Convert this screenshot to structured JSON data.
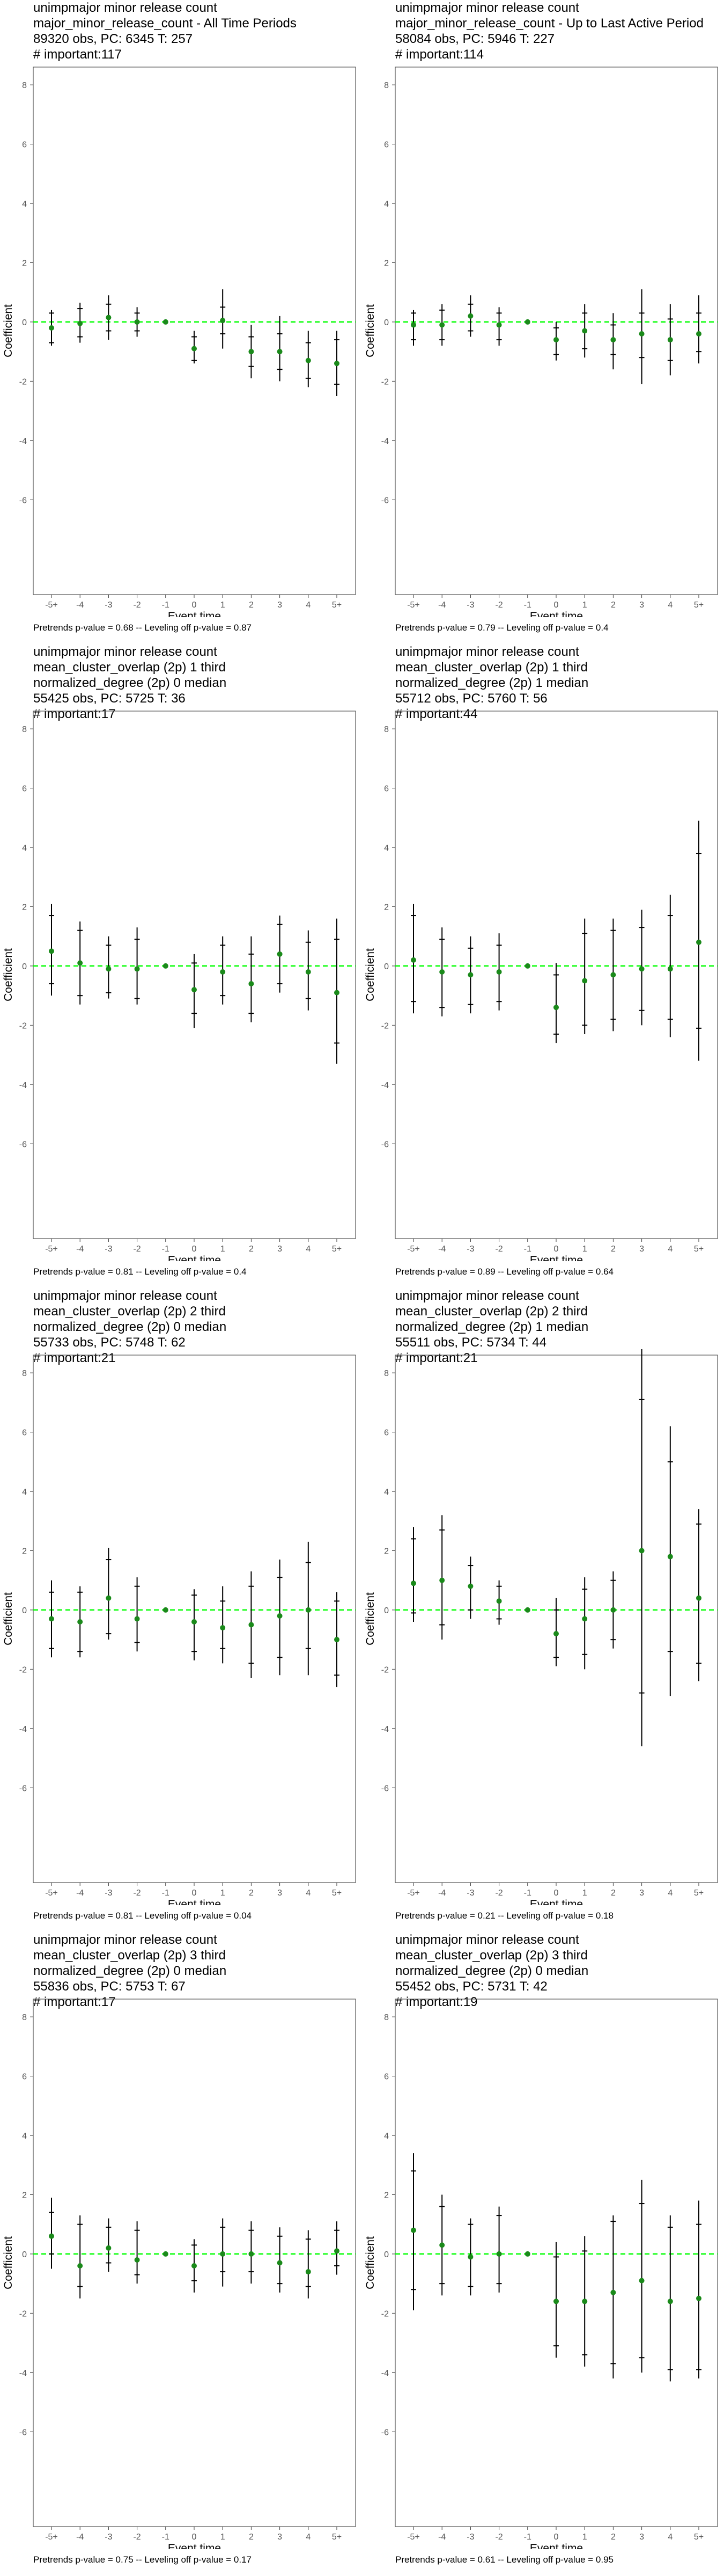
{
  "axis": {
    "xlabel": "Event time",
    "ylabel": "Coefficient",
    "x_ticks": [
      "-5+",
      "-4",
      "-3",
      "-2",
      "-1",
      "0",
      "1",
      "2",
      "3",
      "4",
      "5+"
    ],
    "y_ticks": [
      8,
      6,
      4,
      2,
      0,
      -2,
      -4,
      -6
    ],
    "ylim": [
      -9.2,
      8.6
    ],
    "zero_line_color": "#00FF00",
    "point_color": "#1A8A1A",
    "whisker_color": "#000000"
  },
  "chart_data": [
    {
      "type": "scatter",
      "title": [
        "unimpmajor minor release count",
        "major_minor_release_count - All Time Periods",
        "89320 obs, PC: 6345 T: 257",
        "# important:117"
      ],
      "footer": "Pretrends p-value = 0.68 -- Leveling off p-value = 0.87",
      "x": [
        "-5+",
        "-4",
        "-3",
        "-2",
        "-1",
        "0",
        "1",
        "2",
        "3",
        "4",
        "5+"
      ],
      "estimate": [
        -0.2,
        -0.05,
        0.15,
        0.0,
        0.0,
        -0.9,
        0.05,
        -1.0,
        -1.0,
        -1.3,
        -1.4
      ],
      "inner": [
        [
          -0.7,
          0.3
        ],
        [
          -0.5,
          0.45
        ],
        [
          -0.3,
          0.6
        ],
        [
          -0.3,
          0.3
        ],
        [
          0,
          0
        ],
        [
          -1.3,
          -0.5
        ],
        [
          -0.4,
          0.5
        ],
        [
          -1.5,
          -0.5
        ],
        [
          -1.6,
          -0.4
        ],
        [
          -1.9,
          -0.7
        ],
        [
          -2.1,
          -0.6
        ]
      ],
      "outer": [
        [
          -0.8,
          0.4
        ],
        [
          -0.7,
          0.65
        ],
        [
          -0.6,
          0.9
        ],
        [
          -0.5,
          0.5
        ],
        [
          0,
          0
        ],
        [
          -1.4,
          -0.3
        ],
        [
          -0.9,
          1.1
        ],
        [
          -1.9,
          -0.1
        ],
        [
          -2.0,
          0.2
        ],
        [
          -2.2,
          -0.3
        ],
        [
          -2.5,
          -0.3
        ]
      ]
    },
    {
      "type": "scatter",
      "title": [
        "unimpmajor minor release count",
        "major_minor_release_count - Up to Last Active Period",
        "58084 obs, PC: 5946 T: 227",
        "# important:114"
      ],
      "footer": "Pretrends p-value = 0.79 -- Leveling off p-value = 0.4",
      "x": [
        "-5+",
        "-4",
        "-3",
        "-2",
        "-1",
        "0",
        "1",
        "2",
        "3",
        "4",
        "5+"
      ],
      "estimate": [
        -0.1,
        -0.1,
        0.2,
        -0.1,
        0.0,
        -0.6,
        -0.3,
        -0.6,
        -0.4,
        -0.6,
        -0.4
      ],
      "inner": [
        [
          -0.6,
          0.3
        ],
        [
          -0.6,
          0.4
        ],
        [
          -0.3,
          0.6
        ],
        [
          -0.6,
          0.3
        ],
        [
          0,
          0
        ],
        [
          -1.1,
          -0.2
        ],
        [
          -0.9,
          0.3
        ],
        [
          -1.1,
          -0.1
        ],
        [
          -1.2,
          0.3
        ],
        [
          -1.3,
          0.1
        ],
        [
          -1.0,
          0.3
        ]
      ],
      "outer": [
        [
          -0.8,
          0.4
        ],
        [
          -0.8,
          0.6
        ],
        [
          -0.5,
          0.9
        ],
        [
          -0.8,
          0.5
        ],
        [
          0,
          0
        ],
        [
          -1.3,
          0.0
        ],
        [
          -1.2,
          0.6
        ],
        [
          -1.6,
          0.3
        ],
        [
          -2.1,
          1.1
        ],
        [
          -1.8,
          0.6
        ],
        [
          -1.4,
          0.9
        ]
      ]
    },
    {
      "type": "scatter",
      "title": [
        "unimpmajor minor release count",
        "mean_cluster_overlap (2p) 1 third",
        "normalized_degree (2p) 0 median",
        "55425 obs, PC: 5725 T: 36",
        "# important:17"
      ],
      "footer": "Pretrends p-value = 0.81 -- Leveling off p-value = 0.4",
      "x": [
        "-5+",
        "-4",
        "-3",
        "-2",
        "-1",
        "0",
        "1",
        "2",
        "3",
        "4",
        "5+"
      ],
      "estimate": [
        0.5,
        0.1,
        -0.1,
        -0.1,
        0.0,
        -0.8,
        -0.2,
        -0.6,
        0.4,
        -0.2,
        -0.9
      ],
      "inner": [
        [
          -0.6,
          1.7
        ],
        [
          -1.0,
          1.2
        ],
        [
          -0.9,
          0.7
        ],
        [
          -1.1,
          0.9
        ],
        [
          0,
          0
        ],
        [
          -1.6,
          0.1
        ],
        [
          -1.0,
          0.7
        ],
        [
          -1.6,
          0.4
        ],
        [
          -0.6,
          1.4
        ],
        [
          -1.1,
          0.8
        ],
        [
          -2.6,
          0.9
        ]
      ],
      "outer": [
        [
          -1.0,
          2.1
        ],
        [
          -1.3,
          1.5
        ],
        [
          -1.1,
          1.0
        ],
        [
          -1.3,
          1.3
        ],
        [
          0,
          0
        ],
        [
          -2.1,
          0.4
        ],
        [
          -1.3,
          1.0
        ],
        [
          -1.9,
          1.0
        ],
        [
          -0.9,
          1.7
        ],
        [
          -1.5,
          1.2
        ],
        [
          -3.3,
          1.6
        ]
      ]
    },
    {
      "type": "scatter",
      "title": [
        "unimpmajor minor release count",
        "mean_cluster_overlap (2p) 1 third",
        "normalized_degree (2p) 1 median",
        "55712 obs, PC: 5760 T: 56",
        "# important:44"
      ],
      "footer": "Pretrends p-value = 0.89 -- Leveling off p-value = 0.64",
      "x": [
        "-5+",
        "-4",
        "-3",
        "-2",
        "-1",
        "0",
        "1",
        "2",
        "3",
        "4",
        "5+"
      ],
      "estimate": [
        0.2,
        -0.2,
        -0.3,
        -0.2,
        0.0,
        -1.4,
        -0.5,
        -0.3,
        -0.1,
        -0.1,
        0.8
      ],
      "inner": [
        [
          -1.2,
          1.7
        ],
        [
          -1.4,
          0.9
        ],
        [
          -1.3,
          0.6
        ],
        [
          -1.2,
          0.7
        ],
        [
          0,
          0
        ],
        [
          -2.3,
          -0.3
        ],
        [
          -2.0,
          1.1
        ],
        [
          -1.8,
          1.2
        ],
        [
          -1.5,
          1.3
        ],
        [
          -1.8,
          1.7
        ],
        [
          -2.1,
          3.8
        ]
      ],
      "outer": [
        [
          -1.6,
          2.1
        ],
        [
          -1.7,
          1.3
        ],
        [
          -1.6,
          1.0
        ],
        [
          -1.5,
          1.1
        ],
        [
          0,
          0
        ],
        [
          -2.6,
          0.1
        ],
        [
          -2.3,
          1.6
        ],
        [
          -2.2,
          1.6
        ],
        [
          -2.0,
          1.9
        ],
        [
          -2.4,
          2.4
        ],
        [
          -3.2,
          4.9
        ]
      ]
    },
    {
      "type": "scatter",
      "title": [
        "unimpmajor minor release count",
        "mean_cluster_overlap (2p) 2 third",
        "normalized_degree (2p) 0 median",
        "55733 obs, PC: 5748 T: 62",
        "# important:21"
      ],
      "footer": "Pretrends p-value = 0.81 -- Leveling off p-value = 0.04",
      "x": [
        "-5+",
        "-4",
        "-3",
        "-2",
        "-1",
        "0",
        "1",
        "2",
        "3",
        "4",
        "5+"
      ],
      "estimate": [
        -0.3,
        -0.4,
        0.4,
        -0.3,
        0.0,
        -0.4,
        -0.6,
        -0.5,
        -0.2,
        0.0,
        -1.0
      ],
      "inner": [
        [
          -1.3,
          0.6
        ],
        [
          -1.4,
          0.6
        ],
        [
          -0.8,
          1.7
        ],
        [
          -1.1,
          0.8
        ],
        [
          0,
          0
        ],
        [
          -1.4,
          0.5
        ],
        [
          -1.3,
          0.3
        ],
        [
          -1.8,
          0.8
        ],
        [
          -1.6,
          1.1
        ],
        [
          -1.3,
          1.6
        ],
        [
          -2.2,
          0.3
        ]
      ],
      "outer": [
        [
          -1.6,
          1.0
        ],
        [
          -1.6,
          0.8
        ],
        [
          -1.0,
          2.1
        ],
        [
          -1.4,
          1.1
        ],
        [
          0,
          0
        ],
        [
          -1.7,
          0.7
        ],
        [
          -1.8,
          0.8
        ],
        [
          -2.3,
          1.3
        ],
        [
          -2.2,
          1.7
        ],
        [
          -2.2,
          2.3
        ],
        [
          -2.6,
          0.6
        ]
      ]
    },
    {
      "type": "scatter",
      "title": [
        "unimpmajor minor release count",
        "mean_cluster_overlap (2p) 2 third",
        "normalized_degree (2p) 1 median",
        "55511 obs, PC: 5734 T: 44",
        "# important:21"
      ],
      "footer": "Pretrends p-value = 0.21 -- Leveling off p-value = 0.18",
      "x": [
        "-5+",
        "-4",
        "-3",
        "-2",
        "-1",
        "0",
        "1",
        "2",
        "3",
        "4",
        "5+"
      ],
      "estimate": [
        0.9,
        1.0,
        0.8,
        0.3,
        0.0,
        -0.8,
        -0.3,
        0.0,
        2.0,
        1.8,
        0.4
      ],
      "inner": [
        [
          -0.1,
          2.4
        ],
        [
          -0.5,
          2.7
        ],
        [
          0.0,
          1.5
        ],
        [
          -0.3,
          0.8
        ],
        [
          0,
          0
        ],
        [
          -1.6,
          0.0
        ],
        [
          -1.5,
          0.7
        ],
        [
          -1.0,
          1.0
        ],
        [
          -2.8,
          7.1
        ],
        [
          -1.4,
          5.0
        ],
        [
          -1.8,
          2.9
        ]
      ],
      "outer": [
        [
          -0.4,
          2.8
        ],
        [
          -1.0,
          3.2
        ],
        [
          -0.3,
          1.8
        ],
        [
          -0.5,
          1.0
        ],
        [
          0,
          0
        ],
        [
          -1.9,
          0.4
        ],
        [
          -2.0,
          1.1
        ],
        [
          -1.3,
          1.3
        ],
        [
          -4.6,
          8.8
        ],
        [
          -2.9,
          6.2
        ],
        [
          -2.4,
          3.4
        ]
      ]
    },
    {
      "type": "scatter",
      "title": [
        "unimpmajor minor release count",
        "mean_cluster_overlap (2p) 3 third",
        "normalized_degree (2p) 0 median",
        "55836 obs, PC: 5753 T: 67",
        "# important:17"
      ],
      "footer": "Pretrends p-value = 0.75 -- Leveling off p-value = 0.17",
      "x": [
        "-5+",
        "-4",
        "-3",
        "-2",
        "-1",
        "0",
        "1",
        "2",
        "3",
        "4",
        "5+"
      ],
      "estimate": [
        0.6,
        -0.4,
        0.2,
        -0.2,
        0.0,
        -0.4,
        0.0,
        0.0,
        -0.3,
        -0.6,
        0.1
      ],
      "inner": [
        [
          0.0,
          1.4
        ],
        [
          -1.1,
          1.0
        ],
        [
          -0.3,
          0.9
        ],
        [
          -0.7,
          0.8
        ],
        [
          0,
          0
        ],
        [
          -0.9,
          0.3
        ],
        [
          -0.6,
          0.9
        ],
        [
          -0.6,
          0.8
        ],
        [
          -1.0,
          0.6
        ],
        [
          -1.1,
          0.5
        ],
        [
          -0.4,
          0.8
        ]
      ],
      "outer": [
        [
          -0.5,
          1.9
        ],
        [
          -1.5,
          1.3
        ],
        [
          -0.6,
          1.2
        ],
        [
          -1.0,
          1.1
        ],
        [
          0,
          0
        ],
        [
          -1.3,
          0.5
        ],
        [
          -1.1,
          1.2
        ],
        [
          -1.0,
          1.1
        ],
        [
          -1.3,
          0.9
        ],
        [
          -1.5,
          0.8
        ],
        [
          -0.7,
          1.1
        ]
      ]
    },
    {
      "type": "scatter",
      "title": [
        "unimpmajor minor release count",
        "mean_cluster_overlap (2p) 3 third",
        "normalized_degree (2p) 0 median",
        "55452 obs, PC: 5731 T: 42",
        "# important:19"
      ],
      "footer": "Pretrends p-value = 0.61 -- Leveling off p-value = 0.95",
      "x": [
        "-5+",
        "-4",
        "-3",
        "-2",
        "-1",
        "0",
        "1",
        "2",
        "3",
        "4",
        "5+"
      ],
      "estimate": [
        0.8,
        0.3,
        -0.1,
        0.0,
        0.0,
        -1.6,
        -1.6,
        -1.3,
        -0.9,
        -1.6,
        -1.5
      ],
      "inner": [
        [
          -1.2,
          2.8
        ],
        [
          -1.0,
          1.6
        ],
        [
          -1.1,
          1.0
        ],
        [
          -1.0,
          1.3
        ],
        [
          0,
          0
        ],
        [
          -3.1,
          -0.1
        ],
        [
          -3.4,
          0.1
        ],
        [
          -3.7,
          1.1
        ],
        [
          -3.5,
          1.7
        ],
        [
          -3.9,
          0.9
        ],
        [
          -3.9,
          1.0
        ]
      ],
      "outer": [
        [
          -1.9,
          3.4
        ],
        [
          -1.4,
          2.0
        ],
        [
          -1.4,
          1.2
        ],
        [
          -1.3,
          1.6
        ],
        [
          0,
          0
        ],
        [
          -3.5,
          0.4
        ],
        [
          -3.8,
          0.6
        ],
        [
          -4.2,
          1.3
        ],
        [
          -4.0,
          2.5
        ],
        [
          -4.3,
          1.3
        ],
        [
          -4.2,
          1.8
        ]
      ]
    }
  ]
}
